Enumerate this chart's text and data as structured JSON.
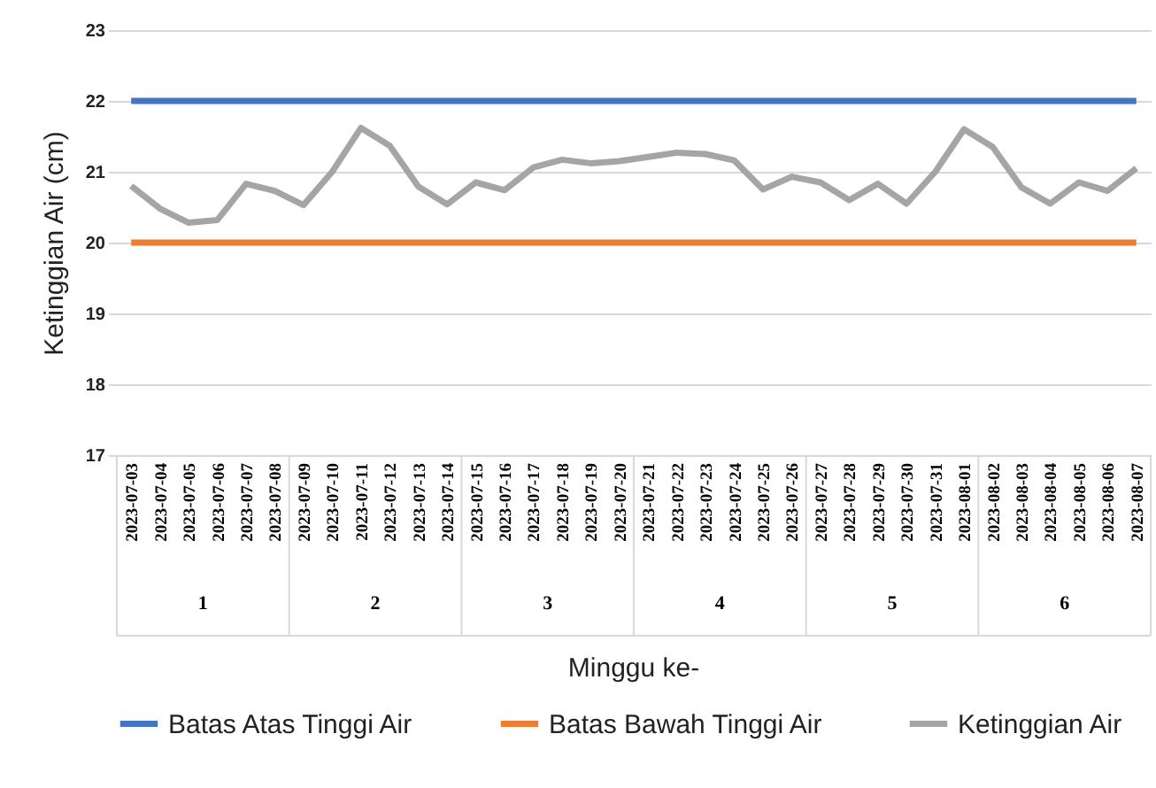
{
  "chart_data": {
    "type": "line",
    "xlabel": "Minggu ke-",
    "ylabel": "Ketinggian Air (cm)",
    "categories": [
      "2023-07-03",
      "2023-07-04",
      "2023-07-05",
      "2023-07-06",
      "2023-07-07",
      "2023-07-08",
      "2023-07-09",
      "2023-07-10",
      "2023-07-11",
      "2023-07-12",
      "2023-07-13",
      "2023-07-14",
      "2023-07-15",
      "2023-07-16",
      "2023-07-17",
      "2023-07-18",
      "2023-07-19",
      "2023-07-20",
      "2023-07-21",
      "2023-07-22",
      "2023-07-23",
      "2023-07-24",
      "2023-07-25",
      "2023-07-26",
      "2023-07-27",
      "2023-07-28",
      "2023-07-29",
      "2023-07-30",
      "2023-07-31",
      "2023-08-01",
      "2023-08-02",
      "2023-08-03",
      "2023-08-04",
      "2023-08-05",
      "2023-08-06",
      "2023-08-07"
    ],
    "series": [
      {
        "name": "Batas Atas Tinggi Air",
        "color": "#4472c4",
        "values": [
          22,
          22,
          22,
          22,
          22,
          22,
          22,
          22,
          22,
          22,
          22,
          22,
          22,
          22,
          22,
          22,
          22,
          22,
          22,
          22,
          22,
          22,
          22,
          22,
          22,
          22,
          22,
          22,
          22,
          22,
          22,
          22,
          22,
          22,
          22,
          22
        ]
      },
      {
        "name": "Batas Bawah Tinggi Air",
        "color": "#ed7d31",
        "values": [
          20,
          20,
          20,
          20,
          20,
          20,
          20,
          20,
          20,
          20,
          20,
          20,
          20,
          20,
          20,
          20,
          20,
          20,
          20,
          20,
          20,
          20,
          20,
          20,
          20,
          20,
          20,
          20,
          20,
          20,
          20,
          20,
          20,
          20,
          20,
          20
        ]
      },
      {
        "name": "Ketinggian Air",
        "color": "#a5a5a5",
        "values": [
          20.8,
          20.48,
          20.28,
          20.32,
          20.83,
          20.73,
          20.53,
          21.0,
          21.62,
          21.37,
          20.79,
          20.54,
          20.85,
          20.74,
          21.06,
          21.17,
          21.12,
          21.15,
          21.21,
          21.27,
          21.25,
          21.16,
          20.75,
          20.93,
          20.85,
          20.6,
          20.83,
          20.55,
          21.0,
          21.6,
          21.35,
          20.78,
          20.55,
          20.85,
          20.73,
          21.05
        ]
      }
    ],
    "annotations": [
      "1",
      "2",
      "3",
      "4",
      "5",
      "6"
    ],
    "ylim": [
      17,
      23
    ],
    "yticks": [
      17,
      18,
      19,
      20,
      21,
      22,
      23
    ],
    "grid": "y",
    "legend": "bottom",
    "marker": "none",
    "line_style": "solid"
  }
}
